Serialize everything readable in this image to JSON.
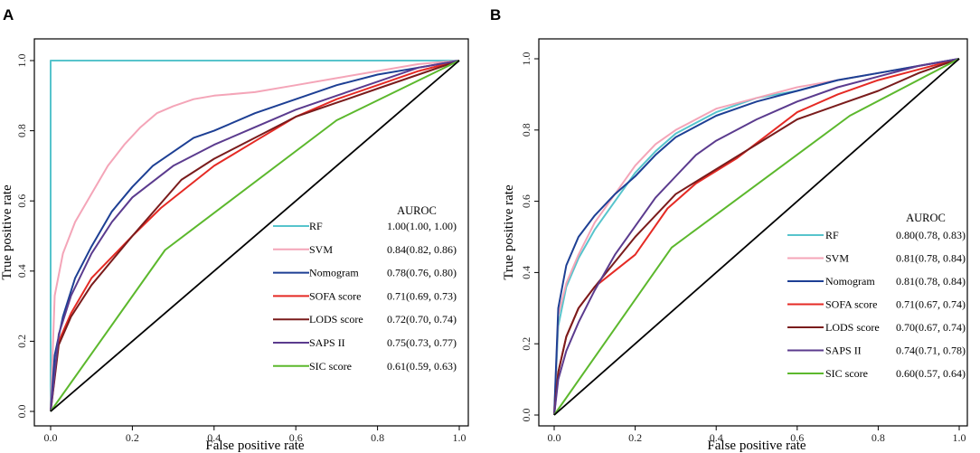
{
  "chart_data": [
    {
      "type": "line",
      "panel": "A",
      "xlabel": "False positive rate",
      "ylabel": "True positive rate",
      "xlim": [
        0,
        1
      ],
      "ylim": [
        0,
        1
      ],
      "xticks": [
        "0.0",
        "0.2",
        "0.4",
        "0.6",
        "0.8",
        "1.0"
      ],
      "yticks": [
        "0.0",
        "0.2",
        "0.4",
        "0.6",
        "0.8",
        "1.0"
      ],
      "legend_title": "AUROC",
      "legend_position": "bottom-right",
      "reference_line": "diagonal",
      "series": [
        {
          "name": "RF",
          "auroc": "1.00(1.00, 1.00)",
          "color": "#57c4cc",
          "x": [
            0,
            0,
            1
          ],
          "y": [
            0,
            1,
            1
          ]
        },
        {
          "name": "SVM",
          "auroc": "0.84(0.82, 0.86)",
          "color": "#f4a5b8",
          "x": [
            0,
            0.01,
            0.03,
            0.06,
            0.1,
            0.14,
            0.18,
            0.22,
            0.26,
            0.3,
            0.35,
            0.4,
            0.5,
            0.6,
            0.7,
            0.8,
            0.9,
            1
          ],
          "y": [
            0,
            0.33,
            0.45,
            0.54,
            0.62,
            0.7,
            0.76,
            0.81,
            0.85,
            0.87,
            0.89,
            0.9,
            0.91,
            0.93,
            0.95,
            0.97,
            0.99,
            1
          ]
        },
        {
          "name": "Nomogram",
          "auroc": "0.78(0.76, 0.80)",
          "color": "#1d3f94",
          "x": [
            0,
            0.01,
            0.03,
            0.06,
            0.1,
            0.15,
            0.2,
            0.25,
            0.3,
            0.35,
            0.4,
            0.5,
            0.6,
            0.7,
            0.8,
            0.9,
            1
          ],
          "y": [
            0,
            0.16,
            0.27,
            0.38,
            0.47,
            0.57,
            0.64,
            0.7,
            0.74,
            0.78,
            0.8,
            0.85,
            0.89,
            0.93,
            0.96,
            0.98,
            1
          ]
        },
        {
          "name": "SOFA score",
          "auroc": "0.71(0.69, 0.73)",
          "color": "#e52a24",
          "x": [
            0,
            0.02,
            0.05,
            0.1,
            0.2,
            0.27,
            0.4,
            0.5,
            0.6,
            0.7,
            0.8,
            0.9,
            1
          ],
          "y": [
            0,
            0.2,
            0.28,
            0.38,
            0.5,
            0.58,
            0.7,
            0.77,
            0.84,
            0.89,
            0.93,
            0.97,
            1
          ]
        },
        {
          "name": "LODS score",
          "auroc": "0.72(0.70, 0.74)",
          "color": "#7a1c1c",
          "x": [
            0,
            0.02,
            0.05,
            0.1,
            0.2,
            0.32,
            0.4,
            0.5,
            0.6,
            0.7,
            0.8,
            0.9,
            1
          ],
          "y": [
            0,
            0.19,
            0.27,
            0.36,
            0.5,
            0.66,
            0.72,
            0.78,
            0.84,
            0.88,
            0.92,
            0.96,
            1
          ]
        },
        {
          "name": "SAPS II",
          "auroc": "0.75(0.73, 0.77)",
          "color": "#5b3b8e",
          "x": [
            0,
            0.02,
            0.05,
            0.1,
            0.15,
            0.2,
            0.3,
            0.4,
            0.5,
            0.6,
            0.7,
            0.8,
            0.9,
            1
          ],
          "y": [
            0,
            0.22,
            0.33,
            0.45,
            0.54,
            0.61,
            0.7,
            0.76,
            0.81,
            0.86,
            0.9,
            0.94,
            0.98,
            1
          ]
        },
        {
          "name": "SIC score",
          "auroc": "0.61(0.59, 0.63)",
          "color": "#5cb82d",
          "x": [
            0,
            0.28,
            0.7,
            1
          ],
          "y": [
            0,
            0.46,
            0.83,
            1
          ]
        }
      ]
    },
    {
      "type": "line",
      "panel": "B",
      "xlabel": "False positive rate",
      "ylabel": "True positive rate",
      "xlim": [
        0,
        1
      ],
      "ylim": [
        0,
        1
      ],
      "xticks": [
        "0.0",
        "0.2",
        "0.4",
        "0.6",
        "0.8",
        "1.0"
      ],
      "yticks": [
        "0.0",
        "0.2",
        "0.4",
        "0.6",
        "0.8",
        "1.0"
      ],
      "legend_title": "AUROC",
      "legend_position": "bottom-right",
      "reference_line": "diagonal",
      "series": [
        {
          "name": "RF",
          "auroc": "0.80(0.78, 0.83)",
          "color": "#57c4cc",
          "x": [
            0,
            0.01,
            0.03,
            0.06,
            0.1,
            0.15,
            0.2,
            0.25,
            0.3,
            0.4,
            0.5,
            0.6,
            0.7,
            0.8,
            0.9,
            1
          ],
          "y": [
            0,
            0.25,
            0.36,
            0.44,
            0.52,
            0.6,
            0.68,
            0.74,
            0.79,
            0.85,
            0.89,
            0.91,
            0.94,
            0.96,
            0.98,
            1
          ]
        },
        {
          "name": "SVM",
          "auroc": "0.81(0.78, 0.84)",
          "color": "#f4a5b8",
          "x": [
            0,
            0.01,
            0.03,
            0.06,
            0.1,
            0.15,
            0.2,
            0.25,
            0.3,
            0.4,
            0.5,
            0.6,
            0.7,
            0.8,
            0.9,
            1
          ],
          "y": [
            0,
            0.28,
            0.37,
            0.45,
            0.54,
            0.62,
            0.7,
            0.76,
            0.8,
            0.86,
            0.89,
            0.92,
            0.94,
            0.96,
            0.98,
            1
          ]
        },
        {
          "name": "Nomogram",
          "auroc": "0.81(0.78, 0.84)",
          "color": "#1d3f94",
          "x": [
            0,
            0.01,
            0.03,
            0.06,
            0.1,
            0.15,
            0.2,
            0.25,
            0.3,
            0.4,
            0.5,
            0.6,
            0.7,
            0.8,
            0.9,
            1
          ],
          "y": [
            0,
            0.3,
            0.42,
            0.5,
            0.56,
            0.62,
            0.67,
            0.73,
            0.78,
            0.84,
            0.88,
            0.91,
            0.94,
            0.96,
            0.98,
            1
          ]
        },
        {
          "name": "SOFA score",
          "auroc": "0.71(0.67, 0.74)",
          "color": "#e52a24",
          "x": [
            0,
            0.01,
            0.03,
            0.06,
            0.1,
            0.2,
            0.28,
            0.35,
            0.45,
            0.6,
            0.7,
            0.8,
            0.9,
            1
          ],
          "y": [
            0,
            0.12,
            0.22,
            0.3,
            0.36,
            0.45,
            0.58,
            0.65,
            0.72,
            0.85,
            0.9,
            0.94,
            0.97,
            1
          ]
        },
        {
          "name": "LODS score",
          "auroc": "0.70(0.67, 0.74)",
          "color": "#7a1c1c",
          "x": [
            0,
            0.01,
            0.03,
            0.06,
            0.1,
            0.2,
            0.3,
            0.4,
            0.5,
            0.6,
            0.7,
            0.8,
            0.9,
            1
          ],
          "y": [
            0,
            0.12,
            0.22,
            0.3,
            0.36,
            0.5,
            0.62,
            0.69,
            0.76,
            0.83,
            0.87,
            0.91,
            0.96,
            1
          ]
        },
        {
          "name": "SAPS II",
          "auroc": "0.74(0.71, 0.78)",
          "color": "#5b3b8e",
          "x": [
            0,
            0.01,
            0.03,
            0.06,
            0.1,
            0.15,
            0.2,
            0.25,
            0.3,
            0.35,
            0.4,
            0.5,
            0.6,
            0.7,
            0.8,
            0.9,
            1
          ],
          "y": [
            0,
            0.1,
            0.18,
            0.26,
            0.35,
            0.45,
            0.53,
            0.61,
            0.67,
            0.73,
            0.77,
            0.83,
            0.88,
            0.92,
            0.95,
            0.98,
            1
          ]
        },
        {
          "name": "SIC score",
          "auroc": "0.60(0.57, 0.64)",
          "color": "#5cb82d",
          "x": [
            0,
            0.29,
            0.73,
            1
          ],
          "y": [
            0,
            0.47,
            0.84,
            1
          ]
        }
      ]
    }
  ]
}
